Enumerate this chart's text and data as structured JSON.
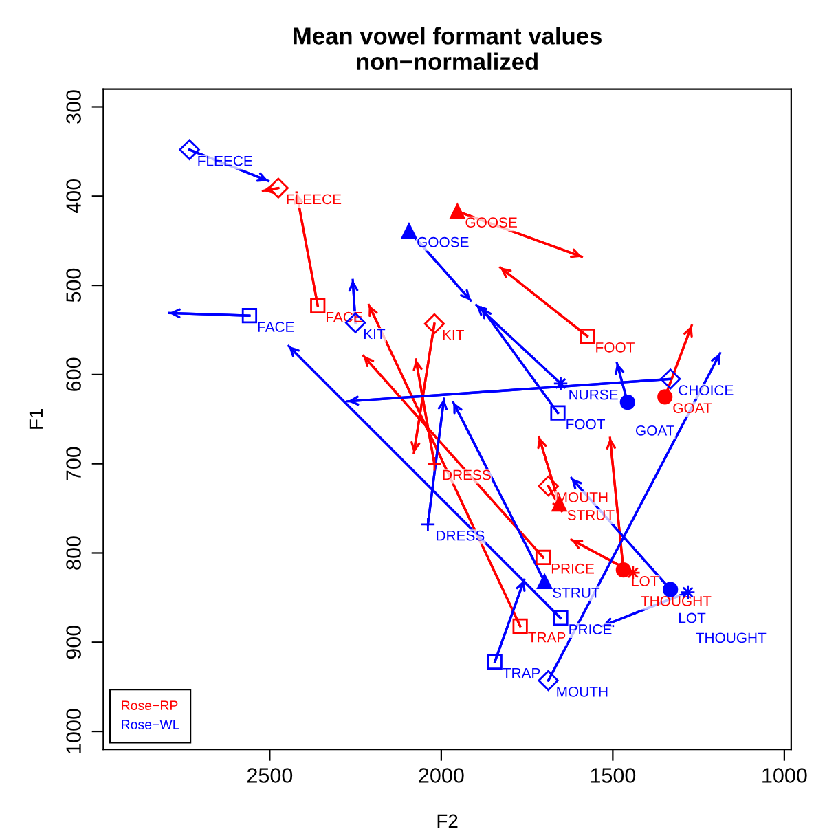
{
  "chart_data": {
    "type": "line",
    "title": "Mean vowel formant values\nnon−normalized",
    "xlabel": "F2",
    "ylabel": "F1",
    "xlim": [
      2985,
      980
    ],
    "ylim": [
      1020,
      280
    ],
    "xticks": [
      2500,
      2000,
      1500,
      1000
    ],
    "yticks": [
      300,
      400,
      500,
      600,
      700,
      800,
      900,
      1000
    ],
    "grid": false,
    "legend": "bottom left",
    "series": [
      {
        "name": "Rose−RP",
        "color": "#ff0000",
        "marker": "diamond",
        "x": [
          2475,
          2520
        ],
        "values": [
          391,
          394
        ]
      },
      {
        "color": "#ff0000",
        "marker": "square",
        "x": [
          2360,
          2422
        ],
        "values": [
          523,
          396
        ]
      },
      {
        "color": "#ff0000",
        "marker": "diamond",
        "x": [
          2020,
          2080
        ],
        "values": [
          543,
          688
        ]
      },
      {
        "color": "#ff0000",
        "marker": "triangle",
        "x": [
          1953,
          1590
        ],
        "values": [
          417,
          468
        ]
      },
      {
        "color": "#ff0000",
        "marker": "square",
        "x": [
          1574,
          1828
        ],
        "values": [
          557,
          480
        ]
      },
      {
        "color": "#ff0000",
        "marker": "circle",
        "x": [
          1348,
          1270
        ],
        "values": [
          625,
          545
        ]
      },
      {
        "color": "#ff0000",
        "marker": "cross",
        "x": [
          2020,
          2074
        ],
        "values": [
          700,
          583
        ]
      },
      {
        "color": "#ff0000",
        "marker": "diamond",
        "x": [
          1688,
          1649
        ],
        "values": [
          725,
          753
        ]
      },
      {
        "color": "#ff0000",
        "marker": "triangle",
        "x": [
          1656,
          1715
        ],
        "values": [
          745,
          670
        ]
      },
      {
        "color": "#ff0000",
        "marker": "square",
        "x": [
          1703,
          2227
        ],
        "values": [
          805,
          579
        ]
      },
      {
        "color": "#ff0000",
        "marker": "square",
        "x": [
          1770,
          2211
        ],
        "values": [
          882,
          522
        ]
      },
      {
        "color": "#ff0000",
        "marker": "circle",
        "x": [
          1469,
          1508
        ],
        "values": [
          819,
          671
        ]
      },
      {
        "color": "#ff0000",
        "marker": "star",
        "x": [
          1441,
          1621
        ],
        "values": [
          822,
          785
        ]
      },
      {
        "name": "Rose−WL",
        "color": "#0000ff",
        "marker": "diamond",
        "x": [
          2734,
          2504
        ],
        "values": [
          348,
          383
        ]
      },
      {
        "color": "#0000ff",
        "marker": "square",
        "x": [
          2559,
          2793
        ],
        "values": [
          534,
          531
        ]
      },
      {
        "color": "#0000ff",
        "marker": "diamond",
        "x": [
          2250,
          2258
        ],
        "values": [
          542,
          494
        ]
      },
      {
        "color": "#0000ff",
        "marker": "triangle",
        "x": [
          2094,
          1914
        ],
        "values": [
          439,
          517
        ]
      },
      {
        "color": "#0000ff",
        "marker": "square",
        "x": [
          1660,
          1883
        ],
        "values": [
          643,
          525
        ]
      },
      {
        "color": "#0000ff",
        "marker": "star",
        "x": [
          1652,
          1898
        ],
        "values": [
          610,
          522
        ]
      },
      {
        "color": "#0000ff",
        "marker": "diamond",
        "x": [
          1332,
          2273
        ],
        "values": [
          605,
          630
        ]
      },
      {
        "color": "#0000ff",
        "marker": "circle",
        "x": [
          1457,
          1488
        ],
        "values": [
          631,
          587
        ]
      },
      {
        "color": "#0000ff",
        "marker": "cross",
        "x": [
          2039,
          1992
        ],
        "values": [
          768,
          627
        ]
      },
      {
        "color": "#0000ff",
        "marker": "triangle",
        "x": [
          1699,
          1965
        ],
        "values": [
          832,
          631
        ]
      },
      {
        "color": "#0000ff",
        "marker": "square",
        "x": [
          1652,
          2445
        ],
        "values": [
          873,
          568
        ]
      },
      {
        "color": "#0000ff",
        "marker": "square",
        "x": [
          1844,
          1758
        ],
        "values": [
          922,
          830
        ]
      },
      {
        "color": "#0000ff",
        "marker": "diamond",
        "x": [
          1688,
          1187
        ],
        "values": [
          943,
          576
        ]
      },
      {
        "color": "#0000ff",
        "marker": "circle",
        "x": [
          1332,
          1621
        ],
        "values": [
          841,
          716
        ]
      },
      {
        "color": "#0000ff",
        "marker": "star",
        "x": [
          1281,
          1531
        ],
        "values": [
          844,
          882
        ]
      }
    ],
    "annotations": [
      {
        "text": "FLEECE",
        "x": 2475,
        "y": 391
      },
      {
        "text": "FACE",
        "x": 2360,
        "y": 523
      },
      {
        "text": "KIT",
        "x": 2020,
        "y": 543
      },
      {
        "text": "GOOSE",
        "x": 1953,
        "y": 417
      },
      {
        "text": "FOOT",
        "x": 1574,
        "y": 557
      },
      {
        "text": "GOAT",
        "x": 1348,
        "y": 625
      },
      {
        "text": "DRESS",
        "x": 2020,
        "y": 700
      },
      {
        "text": "MOUTH",
        "x": 1688,
        "y": 725
      },
      {
        "text": "STRUT",
        "x": 1656,
        "y": 745
      },
      {
        "text": "PRICE",
        "x": 1703,
        "y": 805
      },
      {
        "text": "TRAP",
        "x": 1770,
        "y": 882
      },
      {
        "text": "LOT",
        "x": 1469,
        "y": 819
      },
      {
        "text": "THOUGHT",
        "x": 1441,
        "y": 822
      },
      {
        "text": "FLEECE",
        "x": 2734,
        "y": 348
      },
      {
        "text": "FACE",
        "x": 2559,
        "y": 534
      },
      {
        "text": "KIT",
        "x": 2250,
        "y": 542
      },
      {
        "text": "GOOSE",
        "x": 2094,
        "y": 439
      },
      {
        "text": "FOOT",
        "x": 1660,
        "y": 643
      },
      {
        "text": "NURSE",
        "x": 1652,
        "y": 610
      },
      {
        "text": "CHOICE",
        "x": 1332,
        "y": 605
      },
      {
        "text": "GOAT",
        "x": 1457,
        "y": 631
      },
      {
        "text": "DRESS",
        "x": 2039,
        "y": 768
      },
      {
        "text": "STRUT",
        "x": 1699,
        "y": 832
      },
      {
        "text": "PRICE",
        "x": 1652,
        "y": 873
      },
      {
        "text": "TRAP",
        "x": 1844,
        "y": 922
      },
      {
        "text": "MOUTH",
        "x": 1688,
        "y": 943
      },
      {
        "text": "LOT",
        "x": 1332,
        "y": 841
      },
      {
        "text": "THOUGHT",
        "x": 1281,
        "y": 844
      }
    ]
  }
}
